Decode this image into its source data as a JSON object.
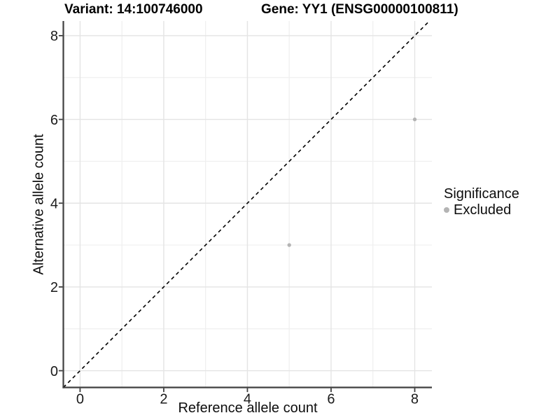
{
  "chart_data": {
    "type": "scatter",
    "title_variant": "Variant: 14:100746000",
    "title_gene": "Gene: YY1 (ENSG00000100811)",
    "xlabel": "Reference allele count",
    "ylabel": "Alternative allele count",
    "x_ticks": [
      0,
      2,
      4,
      6,
      8
    ],
    "y_ticks": [
      0,
      2,
      4,
      6,
      8
    ],
    "x_minor_ticks": [
      1,
      3,
      5,
      7
    ],
    "y_minor_ticks": [
      1,
      3,
      5,
      7
    ],
    "xlim": [
      -0.4,
      8.41
    ],
    "ylim": [
      -0.4,
      8.35
    ],
    "grid": "major+minor",
    "identity_line": {
      "equation": "y = x",
      "style": "dashed",
      "color": "#000000"
    },
    "series": [
      {
        "name": "Excluded",
        "color": "#b4b4b4",
        "points": [
          [
            5,
            3
          ],
          [
            8,
            6
          ]
        ]
      }
    ],
    "legend": {
      "title": "Significance",
      "position": "right",
      "items": [
        {
          "label": "Excluded",
          "color": "#b4b4b4",
          "marker": "circle"
        }
      ]
    },
    "colors": {
      "point": "#b4b4b4",
      "axis_line": "#3f3f3f",
      "tick_mark": "#3f3f3f",
      "tick_label": "#1a1a1a",
      "grid_major": "#e4e4e4",
      "grid_minor": "#efefef",
      "background": "#ffffff"
    }
  }
}
